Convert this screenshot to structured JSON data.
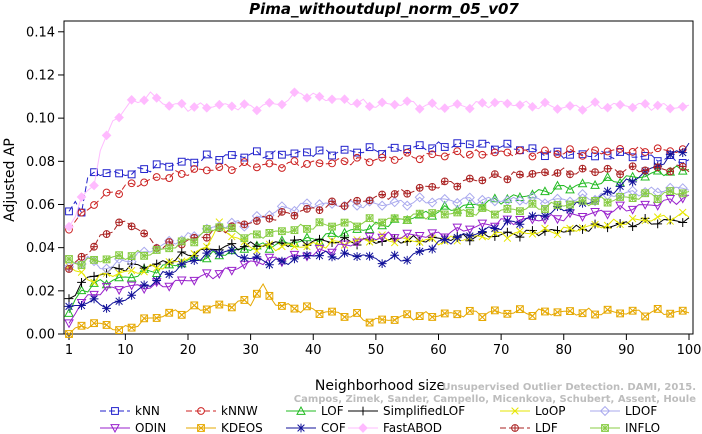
{
  "watermark": {
    "line1": "Unsupervised Outlier Detection. DAMI, 2015.",
    "line2": "Campos, Zimek, Sander, Campello, Micenkova, Schubert, Assent, Houle"
  },
  "chart_data": {
    "type": "line",
    "title": "Pima_withoutdupl_norm_05_v07",
    "xlabel": "Neighborhood size",
    "ylabel": "Adjusted AP",
    "xlim": [
      1,
      100
    ],
    "ylim": [
      0,
      0.145
    ],
    "xticks": [
      1,
      10,
      20,
      30,
      40,
      50,
      60,
      70,
      80,
      90,
      100
    ],
    "yticks": [
      0.0,
      0.02,
      0.04,
      0.06,
      0.08,
      0.1,
      0.12,
      0.14
    ],
    "ytick_labels": [
      "0.00",
      "0.02",
      "0.04",
      "0.06",
      "0.08",
      "0.10",
      "0.12",
      "0.14"
    ],
    "grid": false,
    "legend_position": "bottom",
    "series": [
      {
        "name": "kNN",
        "color": "#2222cc",
        "marker": "square",
        "dash": "6,3",
        "knots": [
          [
            1,
            0.056
          ],
          [
            2,
            0.061
          ],
          [
            3,
            0.058
          ],
          [
            4,
            0.072
          ],
          [
            6,
            0.075
          ],
          [
            10,
            0.074
          ],
          [
            14,
            0.077
          ],
          [
            20,
            0.08
          ],
          [
            25,
            0.082
          ],
          [
            30,
            0.083
          ],
          [
            40,
            0.084
          ],
          [
            50,
            0.085
          ],
          [
            60,
            0.087
          ],
          [
            65,
            0.088
          ],
          [
            70,
            0.087
          ],
          [
            80,
            0.083
          ],
          [
            90,
            0.083
          ],
          [
            100,
            0.08
          ]
        ]
      },
      {
        "name": "kNNW",
        "color": "#cc2222",
        "marker": "circle",
        "dash": "6,3",
        "knots": [
          [
            1,
            0.05
          ],
          [
            3,
            0.055
          ],
          [
            6,
            0.063
          ],
          [
            10,
            0.068
          ],
          [
            15,
            0.072
          ],
          [
            20,
            0.075
          ],
          [
            25,
            0.077
          ],
          [
            30,
            0.078
          ],
          [
            40,
            0.079
          ],
          [
            50,
            0.081
          ],
          [
            60,
            0.083
          ],
          [
            70,
            0.084
          ],
          [
            80,
            0.084
          ],
          [
            90,
            0.085
          ],
          [
            100,
            0.085
          ]
        ]
      },
      {
        "name": "LOF",
        "color": "#22bb22",
        "marker": "triangle-up",
        "dash": "none",
        "knots": [
          [
            1,
            0.01
          ],
          [
            3,
            0.02
          ],
          [
            6,
            0.024
          ],
          [
            10,
            0.026
          ],
          [
            15,
            0.03
          ],
          [
            20,
            0.034
          ],
          [
            25,
            0.037
          ],
          [
            30,
            0.04
          ],
          [
            40,
            0.044
          ],
          [
            50,
            0.05
          ],
          [
            60,
            0.057
          ],
          [
            70,
            0.062
          ],
          [
            80,
            0.068
          ],
          [
            90,
            0.072
          ],
          [
            100,
            0.077
          ]
        ]
      },
      {
        "name": "SimplifiedLOF",
        "color": "#000000",
        "marker": "plus",
        "dash": "none",
        "knots": [
          [
            1,
            0.015
          ],
          [
            3,
            0.024
          ],
          [
            6,
            0.028
          ],
          [
            10,
            0.031
          ],
          [
            15,
            0.032
          ],
          [
            20,
            0.037
          ],
          [
            25,
            0.04
          ],
          [
            30,
            0.041
          ],
          [
            40,
            0.043
          ],
          [
            50,
            0.043
          ],
          [
            60,
            0.044
          ],
          [
            70,
            0.046
          ],
          [
            80,
            0.048
          ],
          [
            90,
            0.051
          ],
          [
            100,
            0.053
          ]
        ]
      },
      {
        "name": "LoOP",
        "color": "#e6e600",
        "marker": "cross",
        "dash": "none",
        "knots": [
          [
            1,
            0.032
          ],
          [
            4,
            0.025
          ],
          [
            8,
            0.028
          ],
          [
            12,
            0.029
          ],
          [
            18,
            0.033
          ],
          [
            22,
            0.038
          ],
          [
            25,
            0.05
          ],
          [
            30,
            0.04
          ],
          [
            40,
            0.041
          ],
          [
            50,
            0.044
          ],
          [
            60,
            0.043
          ],
          [
            70,
            0.046
          ],
          [
            80,
            0.048
          ],
          [
            90,
            0.052
          ],
          [
            100,
            0.055
          ]
        ]
      },
      {
        "name": "LDOF",
        "color": "#aaaaee",
        "marker": "diamond",
        "dash": "none",
        "knots": [
          [
            1,
            0.03
          ],
          [
            4,
            0.036
          ],
          [
            6,
            0.03
          ],
          [
            10,
            0.034
          ],
          [
            15,
            0.04
          ],
          [
            20,
            0.045
          ],
          [
            25,
            0.05
          ],
          [
            30,
            0.052
          ],
          [
            35,
            0.058
          ],
          [
            40,
            0.06
          ],
          [
            50,
            0.06
          ],
          [
            60,
            0.062
          ],
          [
            70,
            0.062
          ],
          [
            80,
            0.062
          ],
          [
            90,
            0.065
          ],
          [
            100,
            0.068
          ]
        ]
      },
      {
        "name": "ODIN",
        "color": "#9922cc",
        "marker": "triangle-down",
        "dash": "none",
        "knots": [
          [
            1,
            0.005
          ],
          [
            3,
            0.015
          ],
          [
            6,
            0.02
          ],
          [
            10,
            0.022
          ],
          [
            15,
            0.022
          ],
          [
            20,
            0.025
          ],
          [
            25,
            0.028
          ],
          [
            30,
            0.033
          ],
          [
            40,
            0.037
          ],
          [
            50,
            0.045
          ],
          [
            60,
            0.046
          ],
          [
            70,
            0.052
          ],
          [
            80,
            0.054
          ],
          [
            90,
            0.058
          ],
          [
            100,
            0.063
          ]
        ]
      },
      {
        "name": "KDEOS",
        "color": "#e6a800",
        "marker": "square-x",
        "dash": "none",
        "knots": [
          [
            1,
            0.0
          ],
          [
            3,
            0.003
          ],
          [
            5,
            0.005
          ],
          [
            8,
            0.003
          ],
          [
            10,
            0.002
          ],
          [
            12,
            0.005
          ],
          [
            15,
            0.008
          ],
          [
            18,
            0.01
          ],
          [
            20,
            0.011
          ],
          [
            25,
            0.013
          ],
          [
            30,
            0.015
          ],
          [
            32,
            0.022
          ],
          [
            34,
            0.014
          ],
          [
            37,
            0.012
          ],
          [
            40,
            0.011
          ],
          [
            45,
            0.009
          ],
          [
            50,
            0.006
          ],
          [
            55,
            0.008
          ],
          [
            60,
            0.009
          ],
          [
            70,
            0.01
          ],
          [
            80,
            0.01
          ],
          [
            90,
            0.01
          ],
          [
            100,
            0.01
          ]
        ]
      },
      {
        "name": "COF",
        "color": "#111199",
        "marker": "asterisk",
        "dash": "none",
        "knots": [
          [
            1,
            0.012
          ],
          [
            4,
            0.015
          ],
          [
            8,
            0.013
          ],
          [
            12,
            0.02
          ],
          [
            16,
            0.027
          ],
          [
            20,
            0.033
          ],
          [
            25,
            0.039
          ],
          [
            30,
            0.035
          ],
          [
            35,
            0.033
          ],
          [
            40,
            0.037
          ],
          [
            45,
            0.036
          ],
          [
            48,
            0.037
          ],
          [
            50,
            0.034
          ],
          [
            55,
            0.035
          ],
          [
            60,
            0.042
          ],
          [
            65,
            0.046
          ],
          [
            70,
            0.05
          ],
          [
            75,
            0.054
          ],
          [
            80,
            0.058
          ],
          [
            85,
            0.062
          ],
          [
            90,
            0.07
          ],
          [
            95,
            0.078
          ],
          [
            100,
            0.088
          ]
        ]
      },
      {
        "name": "FastABOD",
        "color": "#ffbbff",
        "marker": "diamond-filled",
        "dash": "none",
        "knots": [
          [
            1,
            0.05
          ],
          [
            3,
            0.062
          ],
          [
            5,
            0.07
          ],
          [
            6,
            0.085
          ],
          [
            8,
            0.098
          ],
          [
            10,
            0.105
          ],
          [
            12,
            0.108
          ],
          [
            14,
            0.111
          ],
          [
            16,
            0.107
          ],
          [
            20,
            0.105
          ],
          [
            25,
            0.106
          ],
          [
            30,
            0.105
          ],
          [
            35,
            0.107
          ],
          [
            38,
            0.112
          ],
          [
            40,
            0.11
          ],
          [
            45,
            0.108
          ],
          [
            50,
            0.106
          ],
          [
            55,
            0.107
          ],
          [
            60,
            0.105
          ],
          [
            65,
            0.106
          ],
          [
            70,
            0.107
          ],
          [
            75,
            0.106
          ],
          [
            80,
            0.105
          ],
          [
            90,
            0.106
          ],
          [
            100,
            0.105
          ]
        ]
      },
      {
        "name": "LDF",
        "color": "#aa2222",
        "marker": "circle-plus",
        "dash": "6,3",
        "knots": [
          [
            1,
            0.03
          ],
          [
            4,
            0.038
          ],
          [
            7,
            0.047
          ],
          [
            10,
            0.052
          ],
          [
            12,
            0.049
          ],
          [
            14,
            0.043
          ],
          [
            16,
            0.04
          ],
          [
            20,
            0.043
          ],
          [
            25,
            0.048
          ],
          [
            30,
            0.052
          ],
          [
            40,
            0.058
          ],
          [
            50,
            0.063
          ],
          [
            60,
            0.069
          ],
          [
            70,
            0.073
          ],
          [
            80,
            0.075
          ],
          [
            90,
            0.076
          ],
          [
            100,
            0.077
          ]
        ]
      },
      {
        "name": "INFLO",
        "color": "#88cc44",
        "marker": "square-cross",
        "dash": "none",
        "knots": [
          [
            1,
            0.033
          ],
          [
            5,
            0.034
          ],
          [
            10,
            0.036
          ],
          [
            15,
            0.038
          ],
          [
            20,
            0.043
          ],
          [
            25,
            0.05
          ],
          [
            30,
            0.045
          ],
          [
            40,
            0.05
          ],
          [
            50,
            0.052
          ],
          [
            60,
            0.056
          ],
          [
            70,
            0.057
          ],
          [
            80,
            0.06
          ],
          [
            90,
            0.063
          ],
          [
            100,
            0.066
          ]
        ]
      }
    ]
  }
}
